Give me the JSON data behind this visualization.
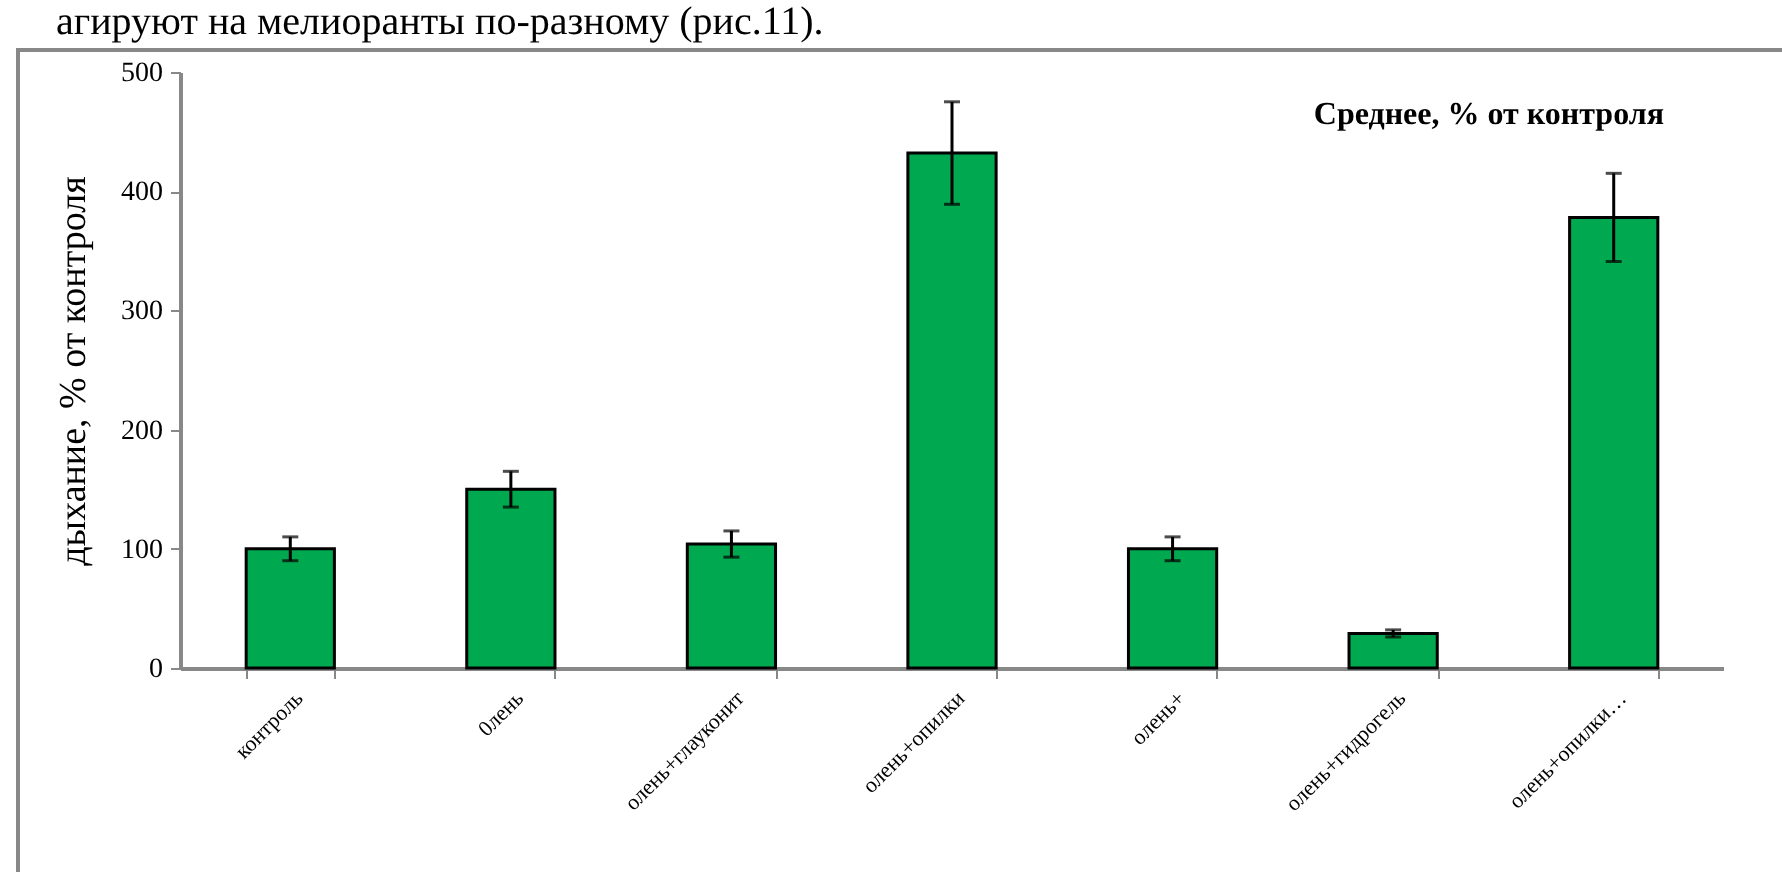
{
  "chart_data": {
    "type": "bar",
    "title": "Среднее, % от контроля",
    "ylabel": "дыхание, % от контроля",
    "annotations": [
      "агируют на мелиоранты по-разному (рис.11)."
    ],
    "categories": [
      "контроль",
      "0лень",
      "олень+глауконит",
      "олень+опилки",
      "олень+",
      "олень+гидрогель",
      "олень+опилки…"
    ],
    "values": [
      100,
      150,
      104,
      432,
      100,
      29,
      378
    ],
    "errors": [
      10,
      15,
      11,
      43,
      10,
      3,
      37
    ],
    "color": "#00a84f",
    "ylim": [
      0,
      500
    ],
    "yticks": [
      0,
      100,
      200,
      300,
      400,
      500
    ],
    "grid": false
  }
}
